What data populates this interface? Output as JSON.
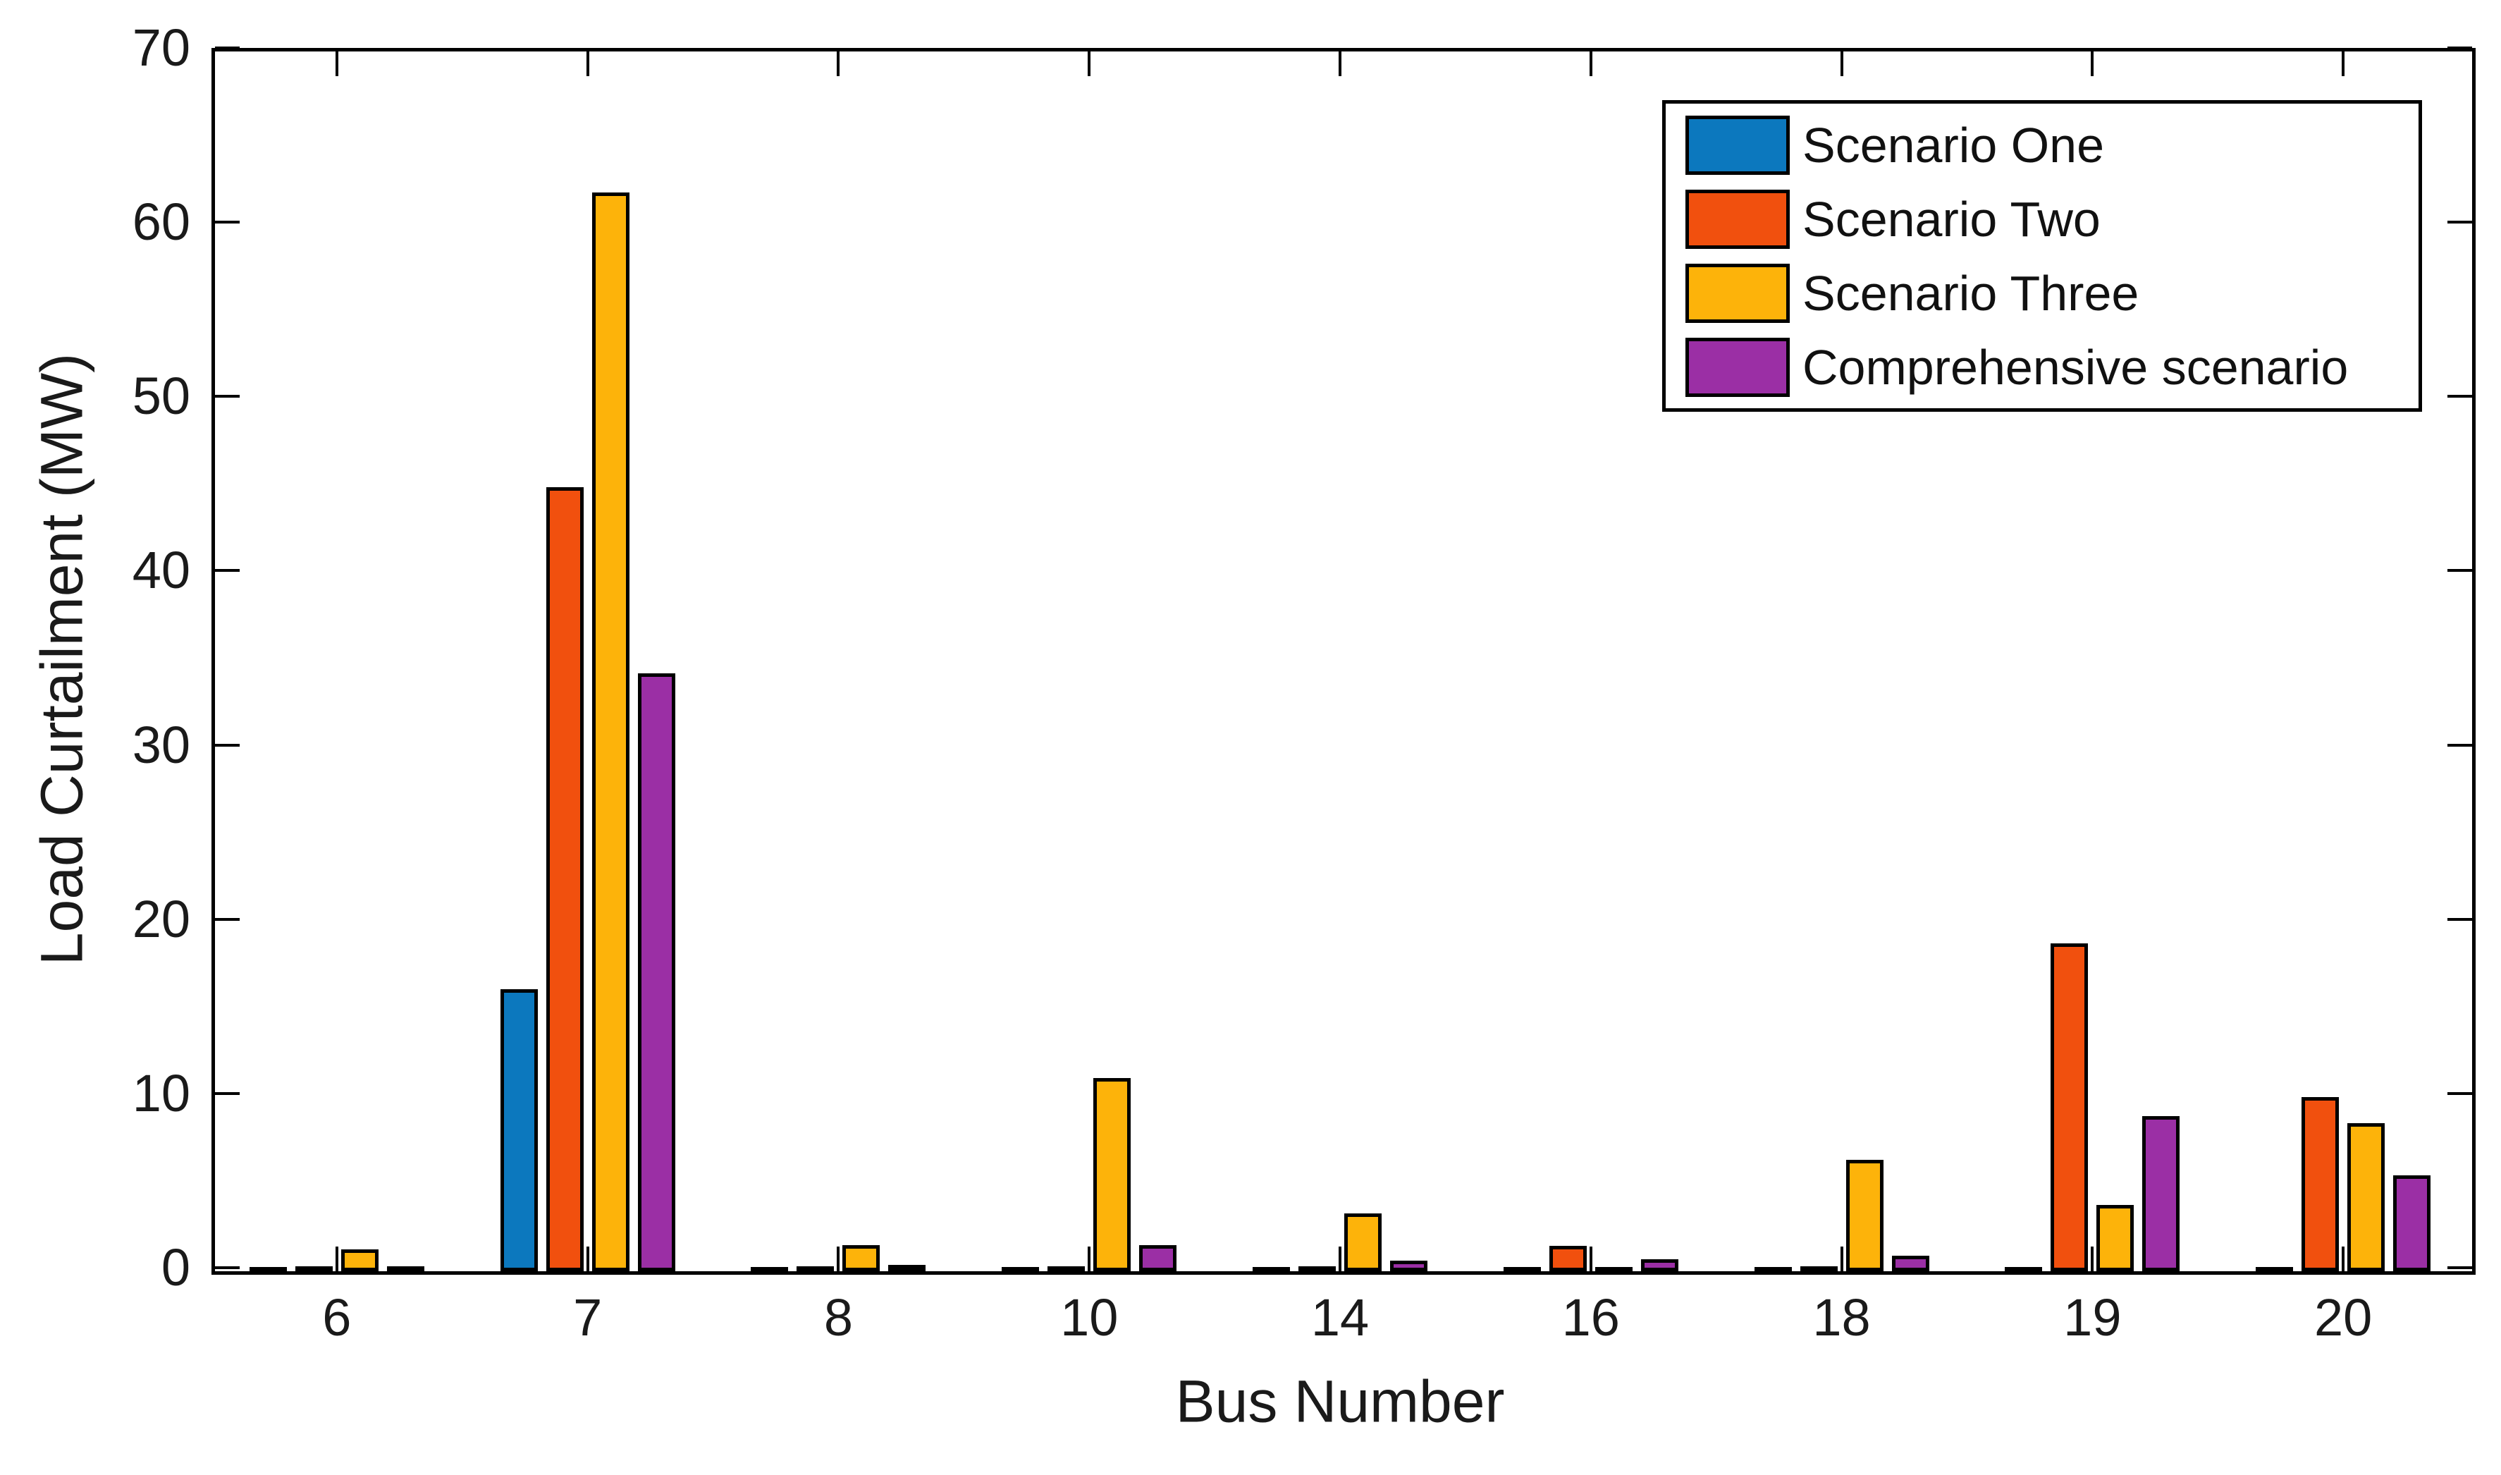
{
  "chart_data": {
    "type": "bar",
    "title": "",
    "xlabel": "Bus Number",
    "ylabel": "Load Curtailment (MW)",
    "categories": [
      "6",
      "7",
      "8",
      "10",
      "14",
      "16",
      "18",
      "19",
      "20"
    ],
    "series": [
      {
        "name": "Scenario One",
        "color": "#0C78BE",
        "values": [
          0.05,
          16.0,
          0.05,
          0.05,
          0.05,
          0.05,
          0.05,
          0.05,
          0.05
        ]
      },
      {
        "name": "Scenario Two",
        "color": "#F1500E",
        "values": [
          0.1,
          44.8,
          0.1,
          0.1,
          0.1,
          1.25,
          0.1,
          18.6,
          9.8
        ]
      },
      {
        "name": "Scenario Three",
        "color": "#FDB30A",
        "values": [
          1.05,
          61.7,
          1.3,
          10.9,
          3.1,
          0.05,
          6.2,
          3.6,
          8.3
        ]
      },
      {
        "name": "Comprehensive scenario",
        "color": "#9B2FA5",
        "values": [
          0.1,
          34.1,
          0.15,
          1.3,
          0.4,
          0.5,
          0.7,
          8.7,
          5.3
        ]
      }
    ],
    "ylim": [
      0,
      70
    ],
    "yticks": [
      0,
      10,
      20,
      30,
      40,
      50,
      60,
      70
    ],
    "grid": false,
    "legend_position": "northeast",
    "bar_edge_color": "#000000",
    "axis_color": "#000000",
    "background_color": "#ffffff"
  }
}
